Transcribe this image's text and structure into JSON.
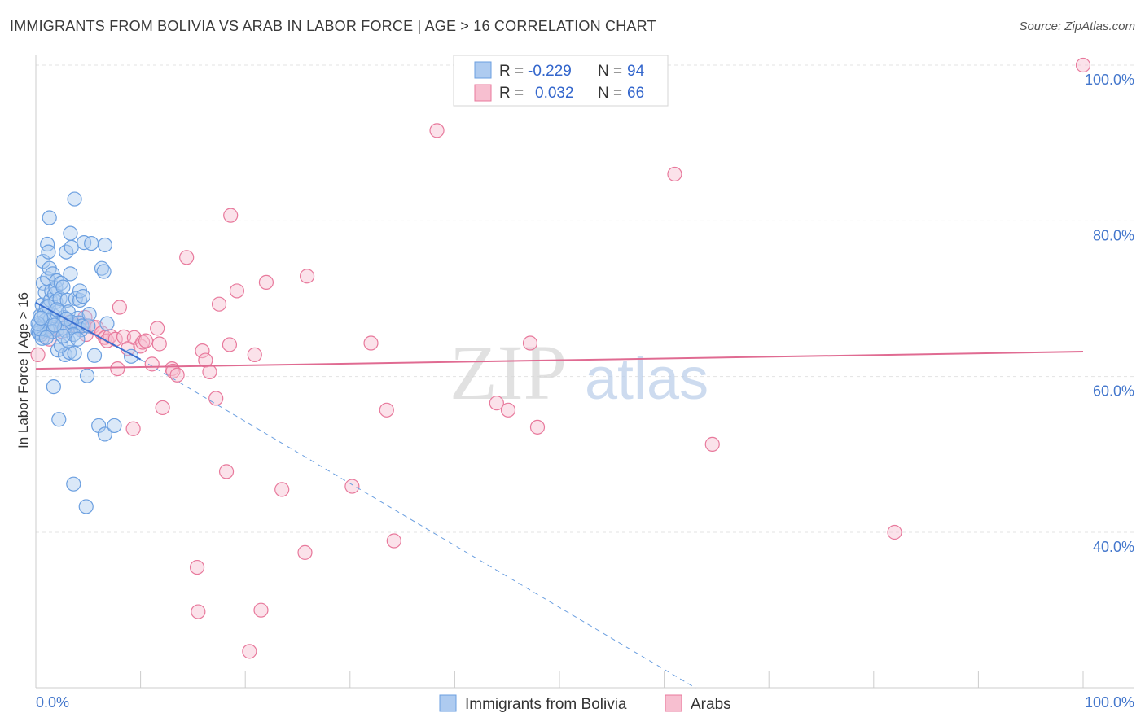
{
  "title": "IMMIGRANTS FROM BOLIVIA VS ARAB IN LABOR FORCE | AGE > 16 CORRELATION CHART",
  "source": "Source: ZipAtlas.com",
  "watermark": {
    "zip": "ZIP",
    "atlas": "atlas"
  },
  "chart_data": {
    "type": "scatter",
    "ylabel": "In Labor Force | Age > 16",
    "xlim": [
      0,
      100
    ],
    "ylim": [
      20,
      102
    ],
    "x_tick_labels": [
      "0.0%",
      "100.0%"
    ],
    "y_ticks": [
      40,
      60,
      80,
      100
    ],
    "y_tick_labels": [
      "40.0%",
      "60.0%",
      "80.0%",
      "100.0%"
    ],
    "legend": [
      {
        "r_label": "R =",
        "r_value": "-0.229",
        "n_label": "N =",
        "n_value": "94"
      },
      {
        "r_label": "R =",
        "r_value": "0.032",
        "n_label": "N =",
        "n_value": "66"
      }
    ],
    "series": [
      {
        "name": "Immigrants from Bolivia",
        "color": "#6b9fe0",
        "fill": "#aecbf0",
        "trend": {
          "x0": 0,
          "y0": 69.5,
          "x1": 10,
          "y1": 62.2,
          "dash_x1": 63,
          "dash_y1": 20
        },
        "points": [
          [
            0.2,
            65.8
          ],
          [
            0.3,
            66.6
          ],
          [
            0.4,
            67.8
          ],
          [
            0.5,
            66.2
          ],
          [
            0.5,
            65.4
          ],
          [
            0.6,
            69.2
          ],
          [
            0.7,
            72.0
          ],
          [
            0.7,
            74.8
          ],
          [
            0.8,
            66.8
          ],
          [
            0.9,
            70.8
          ],
          [
            1.0,
            68.9
          ],
          [
            1.1,
            72.6
          ],
          [
            1.1,
            77.0
          ],
          [
            1.2,
            76.0
          ],
          [
            1.3,
            73.9
          ],
          [
            1.3,
            80.4
          ],
          [
            1.4,
            69.8
          ],
          [
            1.5,
            71.0
          ],
          [
            1.5,
            66.4
          ],
          [
            1.6,
            73.2
          ],
          [
            1.7,
            58.7
          ],
          [
            1.7,
            67.8
          ],
          [
            1.8,
            70.6
          ],
          [
            1.9,
            71.4
          ],
          [
            1.9,
            69.6
          ],
          [
            2.0,
            72.3
          ],
          [
            2.0,
            66.0
          ],
          [
            2.1,
            63.4
          ],
          [
            2.2,
            54.5
          ],
          [
            2.2,
            68.4
          ],
          [
            2.3,
            70.0
          ],
          [
            2.4,
            72.0
          ],
          [
            2.5,
            66.8
          ],
          [
            2.6,
            71.5
          ],
          [
            2.7,
            67.6
          ],
          [
            2.8,
            62.8
          ],
          [
            2.8,
            65.9
          ],
          [
            2.9,
            76.0
          ],
          [
            3.0,
            69.8
          ],
          [
            3.1,
            68.3
          ],
          [
            3.2,
            63.1
          ],
          [
            3.3,
            78.4
          ],
          [
            3.3,
            73.2
          ],
          [
            3.4,
            76.6
          ],
          [
            3.5,
            66.5
          ],
          [
            3.6,
            46.2
          ],
          [
            3.7,
            63.0
          ],
          [
            3.7,
            82.8
          ],
          [
            3.8,
            70.0
          ],
          [
            3.9,
            66.4
          ],
          [
            4.0,
            67.5
          ],
          [
            4.1,
            66.9
          ],
          [
            4.2,
            69.8
          ],
          [
            4.2,
            71.0
          ],
          [
            4.3,
            66.0
          ],
          [
            4.4,
            66.5
          ],
          [
            4.5,
            70.3
          ],
          [
            4.6,
            77.2
          ],
          [
            4.8,
            43.3
          ],
          [
            4.9,
            60.1
          ],
          [
            5.0,
            66.5
          ],
          [
            5.1,
            68.0
          ],
          [
            5.3,
            77.1
          ],
          [
            5.6,
            62.7
          ],
          [
            6.0,
            53.7
          ],
          [
            6.3,
            73.9
          ],
          [
            6.5,
            73.5
          ],
          [
            6.6,
            52.6
          ],
          [
            6.6,
            76.9
          ],
          [
            6.8,
            66.8
          ],
          [
            7.5,
            53.7
          ],
          [
            9.1,
            62.6
          ],
          [
            0.3,
            65.6
          ],
          [
            0.6,
            64.9
          ],
          [
            0.9,
            67.2
          ],
          [
            1.1,
            66.0
          ],
          [
            1.4,
            67.4
          ],
          [
            1.6,
            65.8
          ],
          [
            2.4,
            64.0
          ],
          [
            2.7,
            66.2
          ],
          [
            3.1,
            64.6
          ],
          [
            3.4,
            67.0
          ],
          [
            0.4,
            66.1
          ],
          [
            0.8,
            68.0
          ],
          [
            1.2,
            69.0
          ],
          [
            2.0,
            68.6
          ],
          [
            2.9,
            67.4
          ],
          [
            3.6,
            65.4
          ],
          [
            4.0,
            64.8
          ],
          [
            1.8,
            66.6
          ],
          [
            1.0,
            65.0
          ],
          [
            0.2,
            66.8
          ],
          [
            2.6,
            65.2
          ],
          [
            0.5,
            67.5
          ]
        ]
      },
      {
        "name": "Arabs",
        "color": "#e8799c",
        "fill": "#f7bfd0",
        "trend": {
          "x0": 0,
          "y0": 61.0,
          "x1": 100,
          "y1": 63.2
        },
        "points": [
          [
            0.2,
            62.8
          ],
          [
            0.8,
            65.8
          ],
          [
            1.3,
            64.8
          ],
          [
            1.7,
            66.2
          ],
          [
            2.5,
            65.8
          ],
          [
            3.2,
            67.0
          ],
          [
            3.6,
            66.6
          ],
          [
            4.0,
            66.4
          ],
          [
            4.6,
            66.6
          ],
          [
            4.7,
            67.6
          ],
          [
            4.8,
            65.4
          ],
          [
            5.4,
            66.4
          ],
          [
            5.8,
            66.3
          ],
          [
            6.3,
            65.6
          ],
          [
            6.6,
            65.0
          ],
          [
            6.8,
            64.6
          ],
          [
            7.1,
            65.2
          ],
          [
            7.6,
            64.8
          ],
          [
            7.8,
            61.0
          ],
          [
            8.0,
            68.9
          ],
          [
            8.4,
            65.1
          ],
          [
            8.8,
            63.6
          ],
          [
            9.3,
            53.3
          ],
          [
            9.4,
            65.0
          ],
          [
            10.0,
            63.9
          ],
          [
            10.2,
            64.4
          ],
          [
            10.5,
            64.6
          ],
          [
            11.1,
            61.6
          ],
          [
            11.6,
            66.2
          ],
          [
            11.8,
            64.2
          ],
          [
            12.1,
            56.0
          ],
          [
            13.0,
            61.0
          ],
          [
            13.1,
            60.7
          ],
          [
            13.5,
            60.2
          ],
          [
            14.4,
            75.3
          ],
          [
            15.4,
            35.5
          ],
          [
            15.5,
            29.8
          ],
          [
            15.9,
            63.3
          ],
          [
            16.2,
            62.1
          ],
          [
            16.6,
            60.6
          ],
          [
            17.2,
            57.2
          ],
          [
            17.5,
            69.3
          ],
          [
            18.2,
            47.8
          ],
          [
            18.5,
            64.1
          ],
          [
            18.6,
            80.7
          ],
          [
            19.2,
            71.0
          ],
          [
            20.4,
            24.7
          ],
          [
            20.9,
            62.8
          ],
          [
            21.5,
            30.0
          ],
          [
            22.0,
            72.1
          ],
          [
            23.5,
            45.5
          ],
          [
            25.7,
            37.4
          ],
          [
            25.9,
            72.9
          ],
          [
            30.2,
            45.9
          ],
          [
            32.0,
            64.3
          ],
          [
            33.5,
            55.7
          ],
          [
            34.2,
            38.9
          ],
          [
            38.3,
            91.6
          ],
          [
            44.0,
            56.6
          ],
          [
            45.1,
            55.7
          ],
          [
            47.2,
            64.3
          ],
          [
            47.9,
            53.5
          ],
          [
            61.0,
            86.0
          ],
          [
            64.6,
            51.3
          ],
          [
            82.0,
            40.0
          ],
          [
            100.0,
            100.0
          ]
        ]
      }
    ]
  },
  "bottom_legend": [
    "Immigrants from Bolivia",
    "Arabs"
  ]
}
